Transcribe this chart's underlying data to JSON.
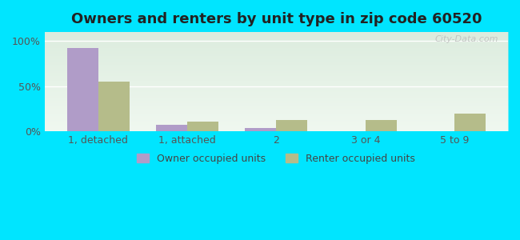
{
  "title": "Owners and renters by unit type in zip code 60520",
  "categories": [
    "1, detached",
    "1, attached",
    "2",
    "3 or 4",
    "5 to 9"
  ],
  "owner_values": [
    92,
    7,
    4,
    0,
    0
  ],
  "renter_values": [
    55,
    11,
    13,
    13,
    20
  ],
  "owner_color": "#b09cc8",
  "renter_color": "#b5bc8a",
  "bg_outer": "#00e5ff",
  "bg_plot_light": "#f0f8f0",
  "bg_plot_dark": "#c8e0cc",
  "yticks": [
    0,
    50,
    100
  ],
  "ytick_labels": [
    "0%",
    "50%",
    "100%"
  ],
  "ylim_max": 110,
  "watermark": "City-Data.com",
  "legend_owner": "Owner occupied units",
  "legend_renter": "Renter occupied units",
  "title_fontsize": 13,
  "bar_width": 0.35,
  "figsize": [
    6.5,
    3.0
  ],
  "dpi": 100
}
